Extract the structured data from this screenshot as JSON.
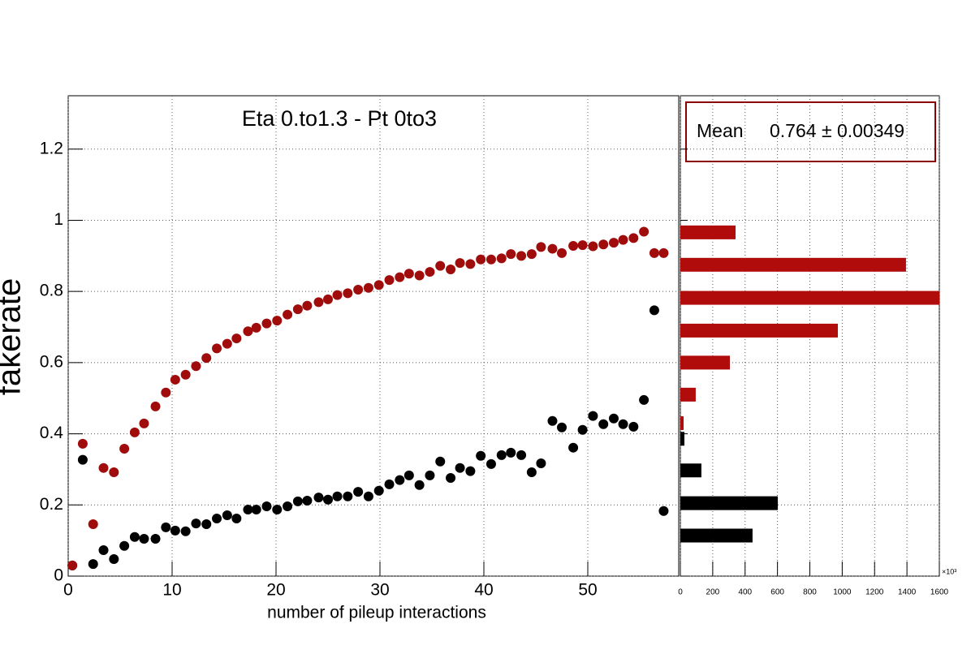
{
  "chart_data": [
    {
      "type": "scatter",
      "title": "Eta 0.to1.3 - Pt 0to3",
      "xlabel": "number of pileup interactions",
      "ylabel": "fakerate",
      "x": [
        0.4,
        1.4,
        2.4,
        3.4,
        4.4,
        5.4,
        6.4,
        7.3,
        8.4,
        9.4,
        10.3,
        11.3,
        12.3,
        13.3,
        14.3,
        15.3,
        16.2,
        17.3,
        18.1,
        19.1,
        20.1,
        21.1,
        22.1,
        23.0,
        24.1,
        25.0,
        25.9,
        26.9,
        27.9,
        28.9,
        29.9,
        30.9,
        31.9,
        32.8,
        33.8,
        34.8,
        35.8,
        36.8,
        37.7,
        38.7,
        39.7,
        40.7,
        41.7,
        42.6,
        43.6,
        44.6,
        45.5,
        46.6,
        47.5,
        48.6,
        49.5,
        50.5,
        51.5,
        52.5,
        53.4,
        54.4,
        55.4,
        56.4,
        57.3
      ],
      "series": [
        {
          "color": "#000000",
          "values": [
            0.03,
            0.327,
            0.034,
            0.073,
            0.048,
            0.085,
            0.11,
            0.105,
            0.105,
            0.137,
            0.128,
            0.126,
            0.148,
            0.146,
            0.162,
            0.171,
            0.162,
            0.187,
            0.187,
            0.196,
            0.187,
            0.196,
            0.21,
            0.212,
            0.221,
            0.215,
            0.224,
            0.224,
            0.237,
            0.224,
            0.24,
            0.258,
            0.27,
            0.283,
            0.256,
            0.283,
            0.322,
            0.276,
            0.304,
            0.295,
            0.338,
            0.315,
            0.34,
            0.347,
            0.34,
            0.292,
            0.317,
            0.436,
            0.418,
            0.361,
            0.411,
            0.45,
            0.427,
            0.443,
            0.427,
            0.42,
            0.495,
            0.747,
            0.183
          ]
        },
        {
          "color": "#a00c0c",
          "values": [
            0.03,
            0.372,
            0.146,
            0.304,
            0.292,
            0.358,
            0.404,
            0.429,
            0.477,
            0.516,
            0.552,
            0.566,
            0.59,
            0.613,
            0.64,
            0.653,
            0.668,
            0.688,
            0.698,
            0.71,
            0.718,
            0.735,
            0.75,
            0.76,
            0.77,
            0.778,
            0.79,
            0.795,
            0.805,
            0.81,
            0.818,
            0.832,
            0.84,
            0.85,
            0.845,
            0.855,
            0.872,
            0.862,
            0.88,
            0.877,
            0.89,
            0.89,
            0.893,
            0.905,
            0.9,
            0.905,
            0.925,
            0.92,
            0.908,
            0.928,
            0.93,
            0.927,
            0.932,
            0.937,
            0.945,
            0.95,
            0.968,
            0.908,
            0.908
          ]
        }
      ],
      "xlim": [
        0,
        58.75
      ],
      "ylim": [
        0,
        1.35
      ],
      "xticks": [
        0,
        10,
        20,
        30,
        40,
        50
      ],
      "yticks": [
        0,
        0.2,
        0.4,
        0.6,
        0.8,
        1,
        1.2
      ],
      "grid": true
    },
    {
      "type": "barh",
      "series": [
        {
          "color": "#b00c0c",
          "y": [
            0.966,
            0.875,
            0.782,
            0.69,
            0.6,
            0.51,
            0.43
          ],
          "values": [
            341,
            1394,
            1600,
            973,
            306,
            95,
            20
          ]
        },
        {
          "color": "#000000",
          "y": [
            0.386,
            0.297,
            0.205,
            0.114
          ],
          "values": [
            25,
            130,
            602,
            446
          ]
        }
      ],
      "xlim": [
        0,
        1600
      ],
      "ylim": [
        0,
        1.35
      ],
      "xticks": [
        0,
        200,
        400,
        600,
        800,
        1000,
        1200,
        1400,
        1600
      ],
      "x_multiplier": "×10³",
      "yticks": [
        0,
        0.2,
        0.4,
        0.6,
        0.8,
        1,
        1.2
      ],
      "grid": true,
      "stats_label": "Mean",
      "stats_text": "0.764 ± 0.00349"
    }
  ]
}
